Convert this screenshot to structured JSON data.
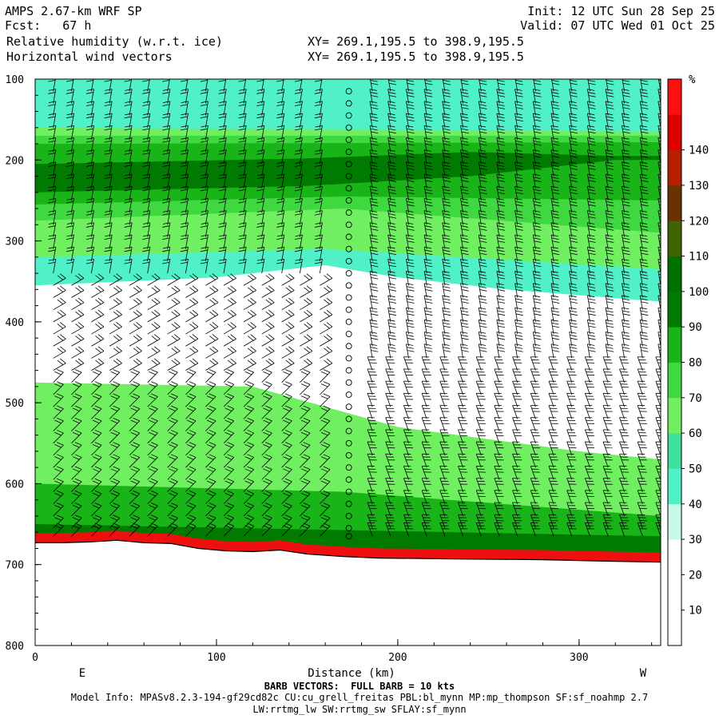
{
  "header": {
    "line1_left": "AMPS 2.67-km WRF SP",
    "line2_left": "Fcst:   67 h",
    "line3_left": "Relative humidity (w.r.t. ice)",
    "line4_left": "Horizontal wind vectors",
    "line1_right": "Init: 12 UTC Sun 28 Sep 25",
    "line2_right": "Valid: 07 UTC Wed 01 Oct 25",
    "line3_mid": "XY= 269.1,195.5 to 398.9,195.5",
    "line4_mid": "XY= 269.1,195.5 to 398.9,195.5"
  },
  "footer": {
    "barb_note": "BARB VECTORS:  FULL BARB = 10 kts",
    "model_info": "Model Info: MPASv8.2.3-194-gf29cd82c CU:cu_grell_freitas PBL:bl_mynn MP:mp_thompson SF:sf_noahmp 2.7",
    "model_info2": "LW:rrtmg_lw SW:rrtmg_sw SFLAY:sf_mynn"
  },
  "chart_data": {
    "type": "heatmap",
    "title": "Relative humidity (w.r.t. ice)",
    "xlabel": "Distance (km)",
    "ylabel": "",
    "x_end_labels": {
      "left": "E",
      "right": "W"
    },
    "xlim": [
      0,
      345
    ],
    "ylim": [
      100,
      800
    ],
    "x_ticks": [
      0,
      100,
      200,
      300
    ],
    "y_ticks": [
      100,
      200,
      300,
      400,
      500,
      600,
      700,
      800
    ],
    "colorbar": {
      "unit": "%",
      "levels": [
        0,
        10,
        20,
        30,
        40,
        50,
        60,
        70,
        80,
        90,
        100,
        110,
        120,
        130,
        140,
        150
      ],
      "tick_labels": [
        10,
        20,
        30,
        40,
        50,
        60,
        70,
        80,
        90,
        100,
        110,
        120,
        130,
        140
      ],
      "colors": [
        "#ffffff",
        "#ffffff",
        "#ffffff",
        "#c8fae8",
        "#50f0c8",
        "#40e0a0",
        "#70f060",
        "#40d840",
        "#18b418",
        "#007a00",
        "#007000",
        "#3f6400",
        "#6a3200",
        "#b42000",
        "#e00000",
        "#ff1010"
      ]
    },
    "terrain": [
      {
        "x": 0,
        "p": 673
      },
      {
        "x": 15,
        "p": 673
      },
      {
        "x": 30,
        "p": 672
      },
      {
        "x": 45,
        "p": 670
      },
      {
        "x": 60,
        "p": 673
      },
      {
        "x": 75,
        "p": 674
      },
      {
        "x": 90,
        "p": 680
      },
      {
        "x": 105,
        "p": 683
      },
      {
        "x": 120,
        "p": 684
      },
      {
        "x": 135,
        "p": 682
      },
      {
        "x": 150,
        "p": 687
      },
      {
        "x": 170,
        "p": 690
      },
      {
        "x": 190,
        "p": 692
      },
      {
        "x": 230,
        "p": 693
      },
      {
        "x": 280,
        "p": 694
      },
      {
        "x": 320,
        "p": 696
      },
      {
        "x": 345,
        "p": 697
      }
    ],
    "rh_layers": [
      {
        "name": "moist-upper",
        "top": [
          {
            "x": 0,
            "p": 100
          },
          {
            "x": 345,
            "p": 100
          }
        ],
        "bottom": [
          {
            "x": 0,
            "p": 355
          },
          {
            "x": 100,
            "p": 345
          },
          {
            "x": 160,
            "p": 330
          },
          {
            "x": 200,
            "p": 345
          },
          {
            "x": 260,
            "p": 360
          },
          {
            "x": 345,
            "p": 375
          }
        ],
        "rh": 40
      },
      {
        "name": "moist-band-60",
        "top": [
          {
            "x": 0,
            "p": 160
          },
          {
            "x": 345,
            "p": 165
          }
        ],
        "bottom": [
          {
            "x": 0,
            "p": 320
          },
          {
            "x": 160,
            "p": 310
          },
          {
            "x": 345,
            "p": 335
          }
        ],
        "rh": 60
      },
      {
        "name": "moist-band-70",
        "top": [
          {
            "x": 0,
            "p": 170
          },
          {
            "x": 345,
            "p": 170
          }
        ],
        "bottom": [
          {
            "x": 0,
            "p": 275
          },
          {
            "x": 170,
            "p": 260
          },
          {
            "x": 345,
            "p": 290
          }
        ],
        "rh": 70
      },
      {
        "name": "moist-band-80",
        "top": [
          {
            "x": 0,
            "p": 180
          },
          {
            "x": 345,
            "p": 178
          }
        ],
        "bottom": [
          {
            "x": 0,
            "p": 255
          },
          {
            "x": 170,
            "p": 245
          },
          {
            "x": 345,
            "p": 250
          }
        ],
        "rh": 80
      },
      {
        "name": "moist-band-90",
        "top": [
          {
            "x": 0,
            "p": 205
          },
          {
            "x": 150,
            "p": 198
          },
          {
            "x": 240,
            "p": 190
          },
          {
            "x": 320,
            "p": 195
          }
        ],
        "bottom": [
          {
            "x": 0,
            "p": 240
          },
          {
            "x": 150,
            "p": 232
          },
          {
            "x": 240,
            "p": 220
          },
          {
            "x": 320,
            "p": 200
          }
        ],
        "rh": 90
      },
      {
        "name": "lower-moist-layer",
        "top": [
          {
            "x": 0,
            "p": 475
          },
          {
            "x": 120,
            "p": 480
          },
          {
            "x": 200,
            "p": 530
          },
          {
            "x": 300,
            "p": 560
          },
          {
            "x": 345,
            "p": 570
          }
        ],
        "bottom": "terrain",
        "rh": 60
      },
      {
        "name": "lower-moist-layer-80",
        "top": [
          {
            "x": 0,
            "p": 600
          },
          {
            "x": 170,
            "p": 610
          },
          {
            "x": 345,
            "p": 640
          }
        ],
        "bottom": "terrain",
        "rh": 80
      },
      {
        "name": "near-surface",
        "top": [
          {
            "x": 0,
            "p": 650
          },
          {
            "x": 345,
            "p": 665
          }
        ],
        "bottom": "terrain",
        "rh": 90
      }
    ],
    "barb_columns_x": [
      10,
      20,
      31,
      41,
      52,
      62,
      73,
      83,
      94,
      104,
      115,
      125,
      136,
      146,
      157,
      173,
      186,
      196,
      206,
      216,
      226,
      236,
      246,
      256,
      266,
      276,
      286,
      296,
      306,
      316,
      325,
      335,
      345
    ],
    "barb_levels": [
      115,
      130,
      145,
      160,
      175,
      190,
      205,
      220,
      235,
      250,
      265,
      280,
      295,
      310,
      325,
      340,
      355,
      370,
      385,
      400,
      415,
      430,
      445,
      460,
      475,
      490,
      505,
      520,
      535,
      550,
      565,
      580,
      595,
      610,
      625,
      640,
      655,
      665
    ]
  }
}
